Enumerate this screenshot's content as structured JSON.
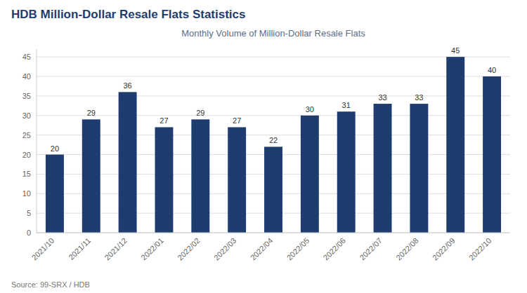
{
  "chart_data": {
    "type": "bar",
    "title": "HDB Million-Dollar Resale Flats Statistics",
    "subtitle": "Monthly Volume of Million-Dollar Resale Flats",
    "source": "Source: 99-SRX / HDB",
    "categories": [
      "2021/10",
      "2021/11",
      "2021/12",
      "2022/01",
      "2022/02",
      "2022/03",
      "2022/04",
      "2022/05",
      "2022/06",
      "2022/07",
      "2022/08",
      "2022/09",
      "2022/10"
    ],
    "values": [
      20,
      29,
      36,
      27,
      29,
      27,
      22,
      30,
      31,
      33,
      33,
      45,
      40
    ],
    "color": "#1F3C6E",
    "ylim": [
      0,
      47
    ],
    "yticks": [
      0,
      5,
      10,
      15,
      20,
      25,
      30,
      35,
      40,
      45
    ],
    "grid": true,
    "data_labels": true
  }
}
